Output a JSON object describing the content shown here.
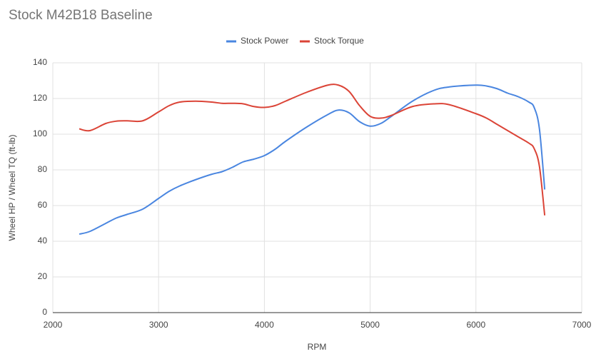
{
  "chart_data": {
    "type": "line",
    "title": "Stock M42B18 Baseline",
    "x_label": "RPM",
    "y_label": "Wheel HP / Wheel TQ (ft-lb)",
    "x": [
      2250,
      2350,
      2500,
      2600,
      2700,
      2850,
      3000,
      3100,
      3200,
      3350,
      3500,
      3600,
      3700,
      3800,
      3900,
      4000,
      4100,
      4200,
      4400,
      4600,
      4700,
      4800,
      4900,
      5000,
      5100,
      5200,
      5400,
      5600,
      5750,
      6000,
      6100,
      6200,
      6300,
      6400,
      6500,
      6550,
      6600,
      6650
    ],
    "series": [
      {
        "name": "Stock Power",
        "color": "#4a86e0",
        "values": [
          44,
          45.5,
          50,
          53,
          55,
          58,
          64,
          68,
          71,
          74.5,
          77.5,
          79,
          81.5,
          84.5,
          86,
          88,
          91.5,
          96,
          104,
          111,
          113.5,
          112,
          107,
          104.5,
          106,
          110,
          118.5,
          124.5,
          126.5,
          127.5,
          127,
          125.5,
          123,
          121,
          118,
          115,
          103,
          69
        ]
      },
      {
        "name": "Stock Torque",
        "color": "#db4437",
        "values": [
          103,
          102,
          106,
          107.3,
          107.5,
          107.5,
          112.5,
          116,
          118,
          118.5,
          118,
          117.3,
          117.3,
          117,
          115.5,
          115,
          116,
          118.5,
          123.5,
          127.5,
          127.5,
          124,
          116,
          110,
          109,
          110.5,
          115.5,
          117,
          116.5,
          111.5,
          109,
          105.5,
          102,
          98.5,
          95,
          92,
          82,
          54.5
        ]
      }
    ],
    "xlim": [
      2000,
      7000
    ],
    "xticks": [
      2000,
      3000,
      4000,
      5000,
      6000,
      7000
    ],
    "ylim": [
      0,
      140
    ],
    "yticks": [
      0,
      20,
      40,
      60,
      80,
      100,
      120,
      140
    ],
    "grid": true,
    "legend": "top"
  }
}
